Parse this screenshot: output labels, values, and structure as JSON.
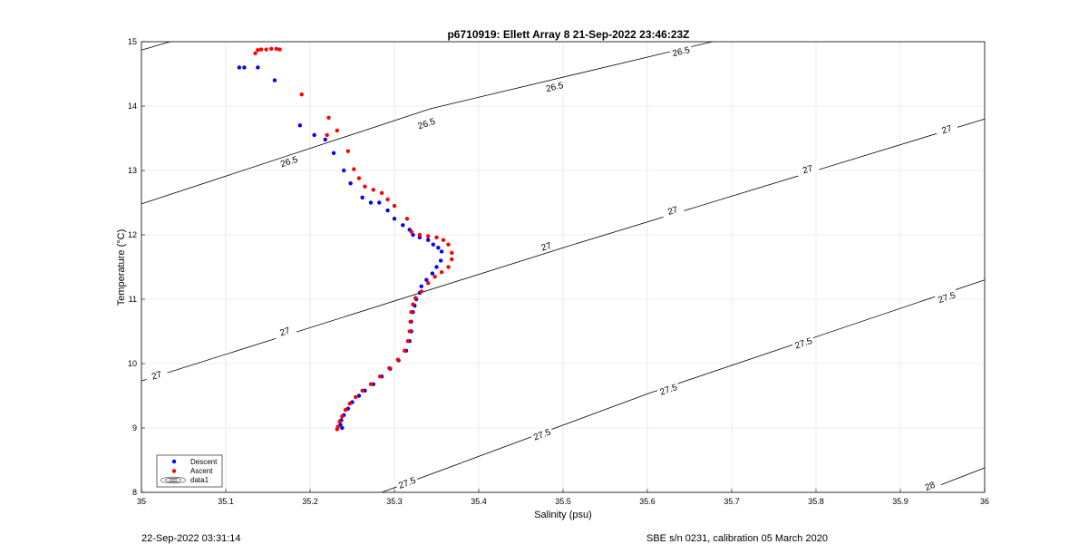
{
  "chart_data": {
    "type": "scatter",
    "title": "p6710919: Ellett Array 8 21-Sep-2022 23:46:23Z",
    "xlabel": "Salinity (psu)",
    "ylabel": "Temperature (°C)",
    "xlim": [
      35,
      36
    ],
    "ylim": [
      8,
      15
    ],
    "x_ticks": [
      "35",
      "35.1",
      "35.2",
      "35.3",
      "35.4",
      "35.5",
      "35.6",
      "35.7",
      "35.8",
      "35.9",
      "36"
    ],
    "y_ticks": [
      "8",
      "9",
      "10",
      "11",
      "12",
      "13",
      "14",
      "15"
    ],
    "grid": true,
    "legend": {
      "placement": "bottom-left",
      "entries": [
        "Descent",
        "Ascent",
        "data1"
      ]
    },
    "colors": {
      "descent": "#0000ff",
      "ascent": "#ff0000",
      "contour": "#000000",
      "grid": "#e6e6e6"
    },
    "series": [
      {
        "name": "Descent",
        "points": [
          [
            35.116,
            14.6
          ],
          [
            35.122,
            14.6
          ],
          [
            35.138,
            14.6
          ],
          [
            35.158,
            14.4
          ],
          [
            35.188,
            13.7
          ],
          [
            35.205,
            13.55
          ],
          [
            35.218,
            13.48
          ],
          [
            35.228,
            13.27
          ],
          [
            35.24,
            13.0
          ],
          [
            35.248,
            12.8
          ],
          [
            35.262,
            12.58
          ],
          [
            35.272,
            12.5
          ],
          [
            35.282,
            12.5
          ],
          [
            35.292,
            12.38
          ],
          [
            35.3,
            12.25
          ],
          [
            35.31,
            12.15
          ],
          [
            35.318,
            12.08
          ],
          [
            35.322,
            12.0
          ],
          [
            35.33,
            11.96
          ],
          [
            35.34,
            11.92
          ],
          [
            35.346,
            11.85
          ],
          [
            35.352,
            11.8
          ],
          [
            35.356,
            11.74
          ],
          [
            35.355,
            11.6
          ],
          [
            35.35,
            11.5
          ],
          [
            35.345,
            11.4
          ],
          [
            35.338,
            11.3
          ],
          [
            35.332,
            11.2
          ],
          [
            35.33,
            11.1
          ],
          [
            35.326,
            11.0
          ],
          [
            35.324,
            10.9
          ],
          [
            35.322,
            10.8
          ],
          [
            35.32,
            10.65
          ],
          [
            35.32,
            10.5
          ],
          [
            35.318,
            10.35
          ],
          [
            35.314,
            10.2
          ],
          [
            35.305,
            10.05
          ],
          [
            35.295,
            9.92
          ],
          [
            35.285,
            9.8
          ],
          [
            35.275,
            9.68
          ],
          [
            35.265,
            9.58
          ],
          [
            35.258,
            9.5
          ],
          [
            35.25,
            9.4
          ],
          [
            35.245,
            9.3
          ],
          [
            35.24,
            9.2
          ],
          [
            35.237,
            9.12
          ],
          [
            35.236,
            9.05
          ],
          [
            35.238,
            9.0
          ]
        ]
      },
      {
        "name": "Ascent",
        "points": [
          [
            35.135,
            14.82
          ],
          [
            35.138,
            14.87
          ],
          [
            35.142,
            14.88
          ],
          [
            35.148,
            14.88
          ],
          [
            35.154,
            14.89
          ],
          [
            35.16,
            14.89
          ],
          [
            35.164,
            14.88
          ],
          [
            35.19,
            14.18
          ],
          [
            35.222,
            13.82
          ],
          [
            35.232,
            13.62
          ],
          [
            35.22,
            13.55
          ],
          [
            35.245,
            13.3
          ],
          [
            35.252,
            13.02
          ],
          [
            35.258,
            12.88
          ],
          [
            35.265,
            12.75
          ],
          [
            35.275,
            12.7
          ],
          [
            35.285,
            12.65
          ],
          [
            35.292,
            12.55
          ],
          [
            35.3,
            12.45
          ],
          [
            35.315,
            12.25
          ],
          [
            35.32,
            12.05
          ],
          [
            35.33,
            12.0
          ],
          [
            35.34,
            11.98
          ],
          [
            35.35,
            11.96
          ],
          [
            35.358,
            11.92
          ],
          [
            35.364,
            11.85
          ],
          [
            35.368,
            11.72
          ],
          [
            35.368,
            11.62
          ],
          [
            35.364,
            11.5
          ],
          [
            35.356,
            11.42
          ],
          [
            35.348,
            11.35
          ],
          [
            35.34,
            11.25
          ],
          [
            35.332,
            11.12
          ],
          [
            35.325,
            11.02
          ],
          [
            35.322,
            10.92
          ],
          [
            35.32,
            10.8
          ],
          [
            35.319,
            10.65
          ],
          [
            35.318,
            10.5
          ],
          [
            35.316,
            10.35
          ],
          [
            35.312,
            10.2
          ],
          [
            35.304,
            10.06
          ],
          [
            35.294,
            9.93
          ],
          [
            35.283,
            9.8
          ],
          [
            35.272,
            9.68
          ],
          [
            35.262,
            9.58
          ],
          [
            35.254,
            9.48
          ],
          [
            35.247,
            9.38
          ],
          [
            35.242,
            9.28
          ],
          [
            35.238,
            9.18
          ],
          [
            35.235,
            9.1
          ],
          [
            35.233,
            9.02
          ],
          [
            35.232,
            8.98
          ]
        ]
      }
    ],
    "contours": [
      {
        "label": "26.5",
        "points": [
          [
            35.0,
            14.87
          ],
          [
            35.034,
            15.0
          ]
        ],
        "label_at": []
      },
      {
        "label": "26.5",
        "points": [
          [
            35.0,
            12.48
          ],
          [
            35.343,
            13.96
          ],
          [
            35.677,
            15.0
          ]
        ],
        "label_at": [
          [
            35.175,
            13.14
          ],
          [
            35.338,
            13.73
          ],
          [
            35.49,
            14.3
          ],
          [
            35.64,
            14.85
          ]
        ]
      },
      {
        "label": "27",
        "points": [
          [
            35.0,
            9.73
          ],
          [
            35.5,
            11.8
          ],
          [
            36.0,
            13.8
          ]
        ],
        "label_at": [
          [
            35.018,
            9.82
          ],
          [
            35.17,
            10.5
          ],
          [
            35.48,
            11.82
          ],
          [
            35.63,
            12.38
          ],
          [
            35.79,
            13.02
          ],
          [
            35.955,
            13.64
          ]
        ]
      },
      {
        "label": "27.5",
        "points": [
          [
            35.285,
            8.0
          ],
          [
            35.6,
            9.53
          ],
          [
            36.0,
            11.3
          ]
        ],
        "label_at": [
          [
            35.315,
            8.15
          ],
          [
            35.475,
            8.9
          ],
          [
            35.625,
            9.6
          ],
          [
            35.785,
            10.32
          ],
          [
            35.955,
            11.03
          ]
        ]
      },
      {
        "label": "28",
        "points": [
          [
            35.925,
            8.0
          ],
          [
            36.0,
            8.38
          ]
        ],
        "label_at": [
          [
            35.935,
            8.1
          ]
        ]
      }
    ]
  },
  "footer": {
    "left": "22-Sep-2022 03:31:14",
    "right": "SBE s/n 0231, calibration 05 March 2020"
  }
}
